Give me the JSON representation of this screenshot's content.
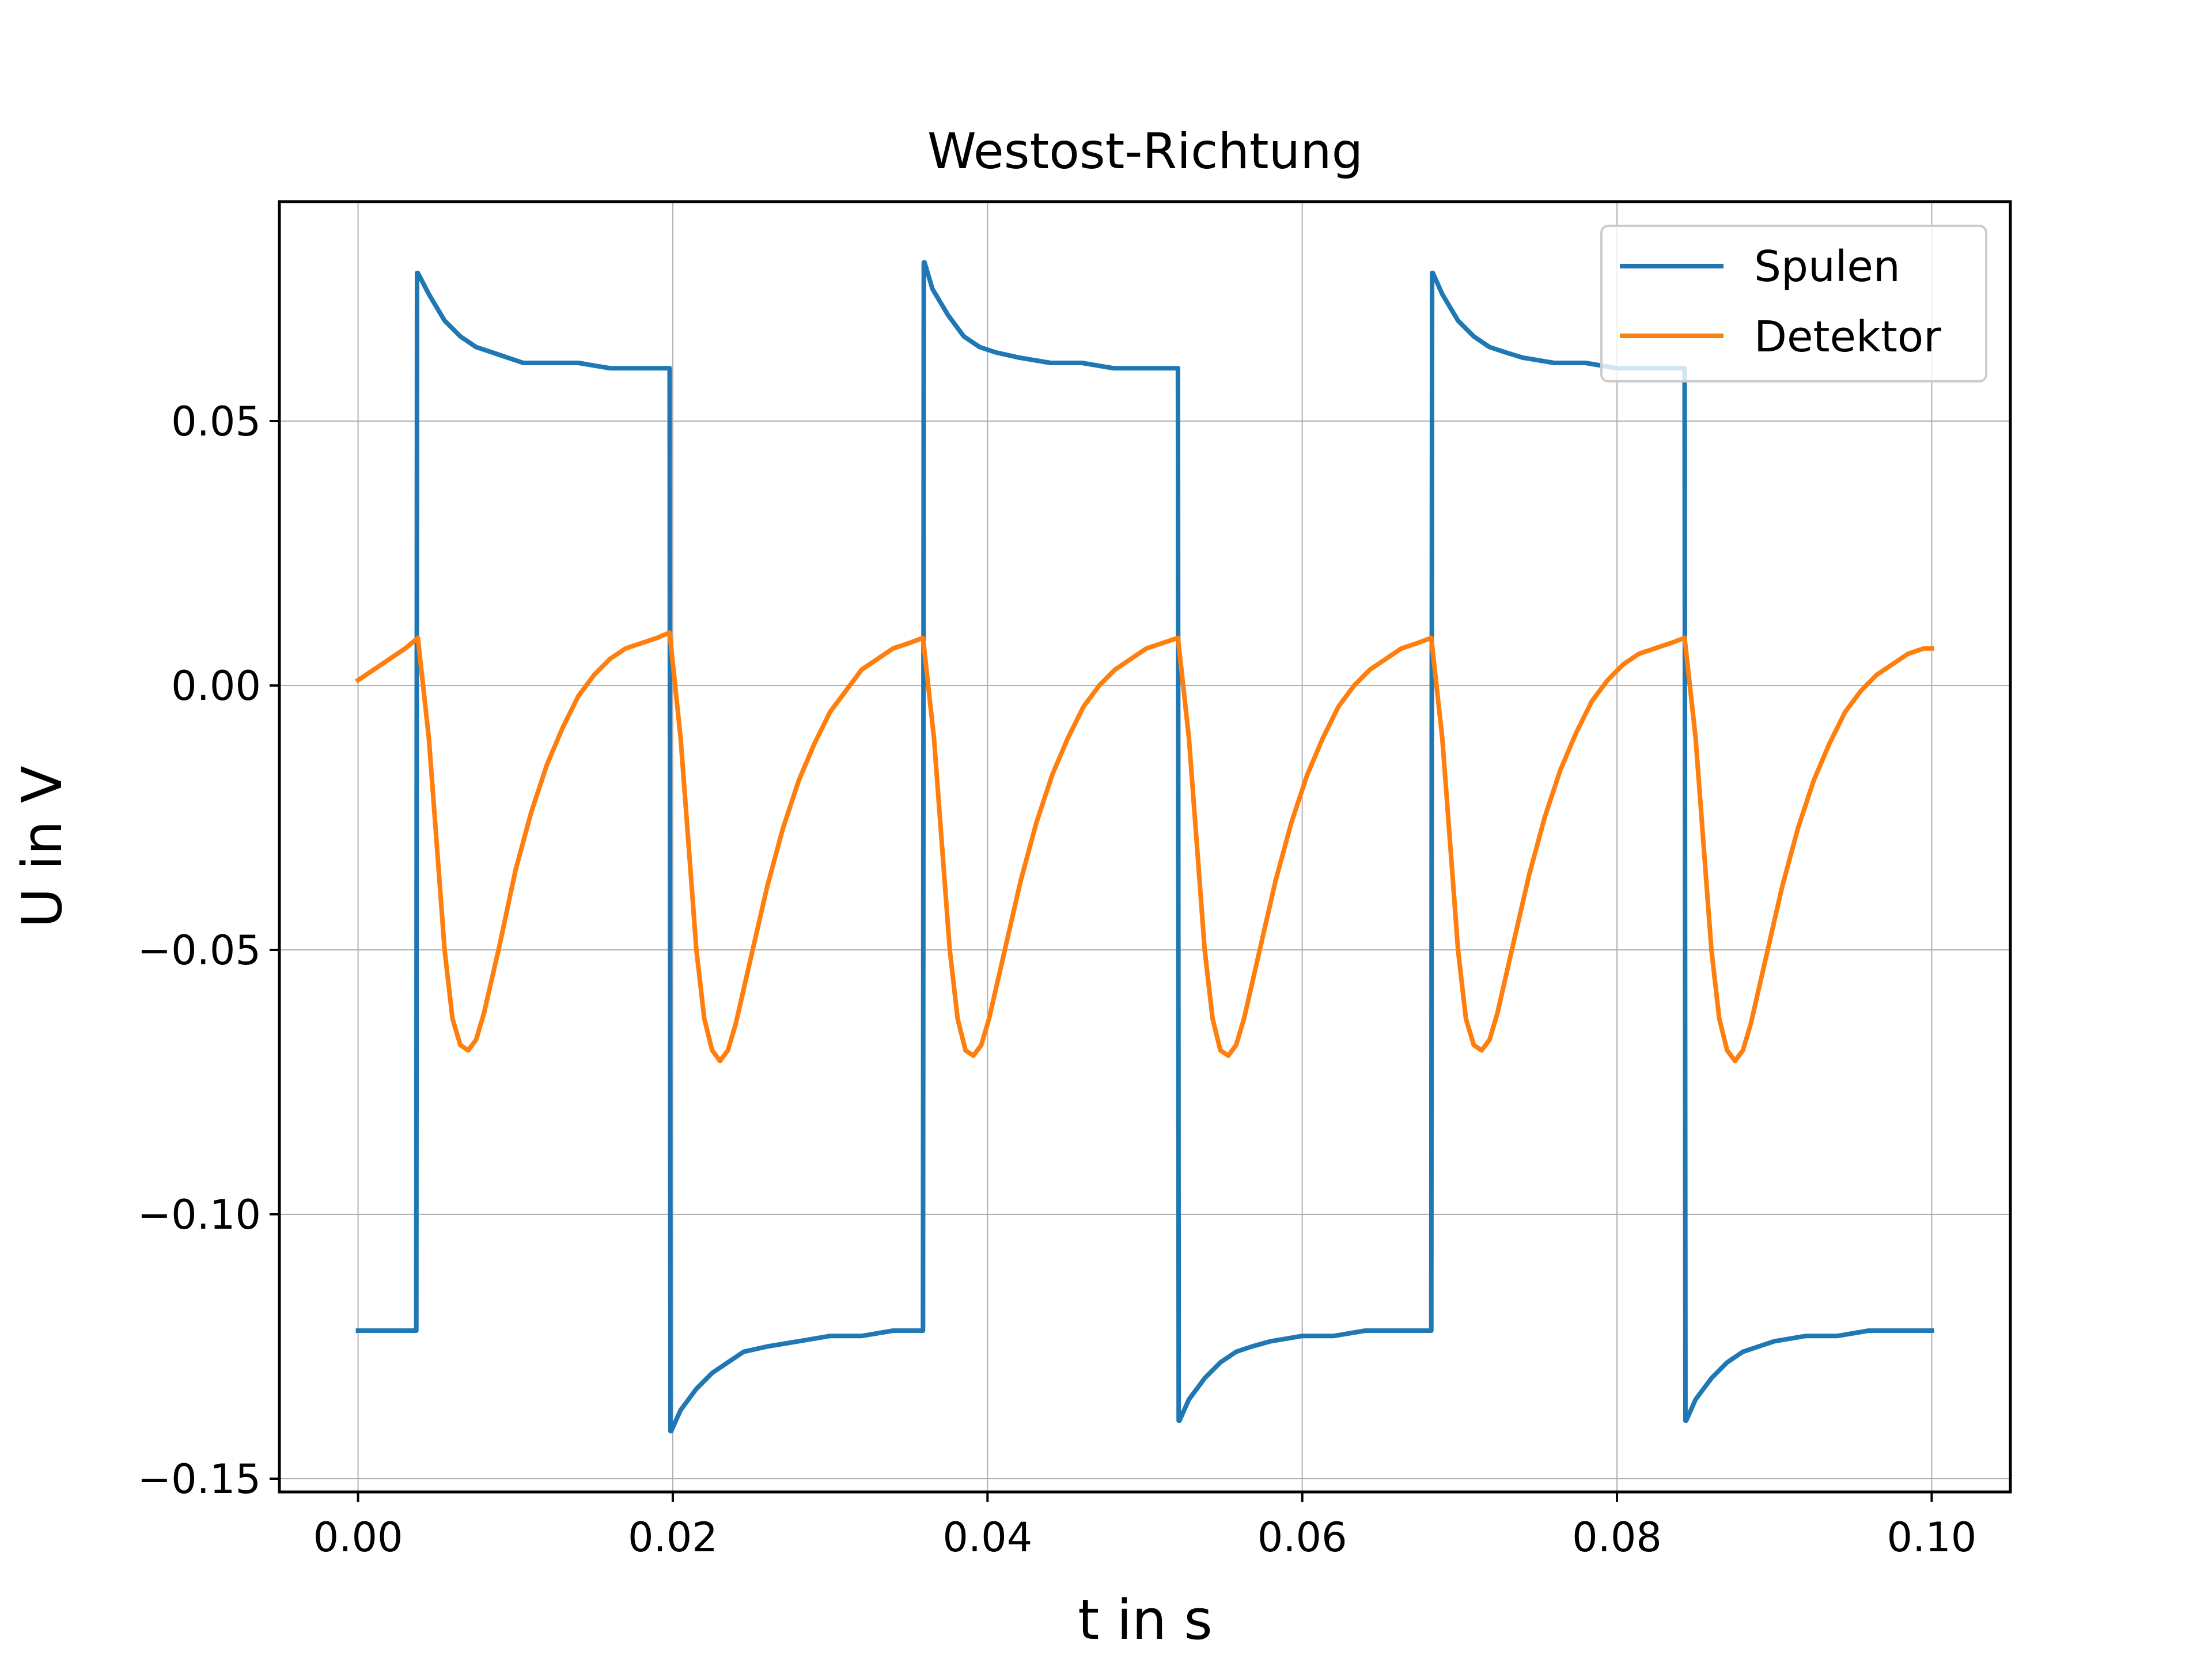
{
  "chart_data": {
    "type": "line",
    "title": "Westost-Richtung",
    "xlabel": "t in s",
    "ylabel": "U in V",
    "xlim": [
      -0.005,
      0.105
    ],
    "ylim": [
      -0.1525,
      0.0915
    ],
    "grid": true,
    "legend_position": "top-right",
    "x_ticks": [
      0.0,
      0.02,
      0.04,
      0.06,
      0.08,
      0.1
    ],
    "x_tick_labels": [
      "0.00",
      "0.02",
      "0.04",
      "0.06",
      "0.08",
      "0.10"
    ],
    "y_ticks": [
      0.05,
      0.0,
      -0.05,
      -0.1,
      -0.15
    ],
    "y_tick_labels": [
      "0.05",
      "0.00",
      "−0.05",
      "−0.10",
      "−0.15"
    ],
    "series": [
      {
        "name": "Spulen",
        "color": "#1f77b4",
        "x": [
          0.0,
          0.0037,
          0.00375,
          0.0038,
          0.0045,
          0.0055,
          0.0065,
          0.0075,
          0.0085,
          0.0095,
          0.0105,
          0.012,
          0.014,
          0.016,
          0.018,
          0.0198,
          0.01985,
          0.0199,
          0.0205,
          0.0215,
          0.0225,
          0.0235,
          0.0245,
          0.026,
          0.028,
          0.03,
          0.032,
          0.034,
          0.0359,
          0.03595,
          0.036,
          0.0365,
          0.0375,
          0.0385,
          0.0395,
          0.0405,
          0.042,
          0.044,
          0.046,
          0.048,
          0.05,
          0.0521,
          0.05215,
          0.0522,
          0.0528,
          0.0538,
          0.0548,
          0.0558,
          0.0568,
          0.058,
          0.06,
          0.062,
          0.064,
          0.066,
          0.0682,
          0.06825,
          0.0683,
          0.0689,
          0.0699,
          0.0709,
          0.0719,
          0.0729,
          0.074,
          0.076,
          0.078,
          0.08,
          0.082,
          0.0843,
          0.08435,
          0.0844,
          0.085,
          0.086,
          0.087,
          0.088,
          0.089,
          0.09,
          0.092,
          0.094,
          0.096,
          0.098,
          0.1
        ],
        "y": [
          -0.122,
          -0.122,
          0.078,
          0.078,
          0.074,
          0.069,
          0.066,
          0.064,
          0.063,
          0.062,
          0.061,
          0.061,
          0.061,
          0.06,
          0.06,
          0.06,
          -0.141,
          -0.141,
          -0.137,
          -0.133,
          -0.13,
          -0.128,
          -0.126,
          -0.125,
          -0.124,
          -0.123,
          -0.123,
          -0.122,
          -0.122,
          0.08,
          0.08,
          0.075,
          0.07,
          0.066,
          0.064,
          0.063,
          0.062,
          0.061,
          0.061,
          0.06,
          0.06,
          0.06,
          -0.139,
          -0.139,
          -0.135,
          -0.131,
          -0.128,
          -0.126,
          -0.125,
          -0.124,
          -0.123,
          -0.123,
          -0.122,
          -0.122,
          -0.122,
          0.078,
          0.078,
          0.074,
          0.069,
          0.066,
          0.064,
          0.063,
          0.062,
          0.061,
          0.061,
          0.06,
          0.06,
          0.06,
          -0.139,
          -0.139,
          -0.135,
          -0.131,
          -0.128,
          -0.126,
          -0.125,
          -0.124,
          -0.123,
          -0.123,
          -0.122,
          -0.122,
          -0.122
        ]
      },
      {
        "name": "Detektor",
        "color": "#ff7f0e",
        "x": [
          0.0,
          0.001,
          0.002,
          0.003,
          0.0038,
          0.0045,
          0.005,
          0.0055,
          0.006,
          0.0065,
          0.007,
          0.0075,
          0.008,
          0.009,
          0.01,
          0.011,
          0.012,
          0.013,
          0.014,
          0.015,
          0.016,
          0.017,
          0.018,
          0.019,
          0.0198,
          0.0205,
          0.021,
          0.0215,
          0.022,
          0.0225,
          0.023,
          0.0235,
          0.024,
          0.025,
          0.026,
          0.027,
          0.028,
          0.029,
          0.03,
          0.031,
          0.032,
          0.033,
          0.034,
          0.035,
          0.0359,
          0.0366,
          0.0371,
          0.0376,
          0.0381,
          0.0386,
          0.0391,
          0.0396,
          0.0401,
          0.0411,
          0.0421,
          0.0431,
          0.0441,
          0.0451,
          0.0461,
          0.0471,
          0.0481,
          0.0491,
          0.0501,
          0.0511,
          0.0521,
          0.0528,
          0.0533,
          0.0538,
          0.0543,
          0.0548,
          0.0553,
          0.0558,
          0.0563,
          0.0573,
          0.0583,
          0.0593,
          0.0603,
          0.0613,
          0.0623,
          0.0633,
          0.0643,
          0.0653,
          0.0663,
          0.0673,
          0.0682,
          0.0689,
          0.0694,
          0.0699,
          0.0704,
          0.0709,
          0.0714,
          0.0719,
          0.0724,
          0.0734,
          0.0744,
          0.0754,
          0.0764,
          0.0774,
          0.0784,
          0.0794,
          0.0804,
          0.0814,
          0.0824,
          0.0834,
          0.0843,
          0.085,
          0.0855,
          0.086,
          0.0865,
          0.087,
          0.0875,
          0.088,
          0.0885,
          0.0895,
          0.0905,
          0.0915,
          0.0925,
          0.0935,
          0.0945,
          0.0955,
          0.0965,
          0.0975,
          0.0985,
          0.0995,
          0.1
        ],
        "y": [
          0.001,
          0.003,
          0.005,
          0.007,
          0.009,
          -0.01,
          -0.03,
          -0.05,
          -0.063,
          -0.068,
          -0.069,
          -0.067,
          -0.062,
          -0.049,
          -0.035,
          -0.024,
          -0.015,
          -0.008,
          -0.002,
          0.002,
          0.005,
          0.007,
          0.008,
          0.009,
          0.01,
          -0.01,
          -0.03,
          -0.05,
          -0.063,
          -0.069,
          -0.071,
          -0.069,
          -0.064,
          -0.051,
          -0.038,
          -0.027,
          -0.018,
          -0.011,
          -0.005,
          -0.001,
          0.003,
          0.005,
          0.007,
          0.008,
          0.009,
          -0.01,
          -0.03,
          -0.05,
          -0.063,
          -0.069,
          -0.07,
          -0.068,
          -0.063,
          -0.05,
          -0.037,
          -0.026,
          -0.017,
          -0.01,
          -0.004,
          0.0,
          0.003,
          0.005,
          0.007,
          0.008,
          0.009,
          -0.01,
          -0.03,
          -0.05,
          -0.063,
          -0.069,
          -0.07,
          -0.068,
          -0.063,
          -0.05,
          -0.037,
          -0.026,
          -0.017,
          -0.01,
          -0.004,
          0.0,
          0.003,
          0.005,
          0.007,
          0.008,
          0.009,
          -0.01,
          -0.03,
          -0.05,
          -0.063,
          -0.068,
          -0.069,
          -0.067,
          -0.062,
          -0.049,
          -0.036,
          -0.025,
          -0.016,
          -0.009,
          -0.003,
          0.001,
          0.004,
          0.006,
          0.007,
          0.008,
          0.009,
          -0.01,
          -0.03,
          -0.05,
          -0.063,
          -0.069,
          -0.071,
          -0.069,
          -0.064,
          -0.051,
          -0.038,
          -0.027,
          -0.018,
          -0.011,
          -0.005,
          -0.001,
          0.002,
          0.004,
          0.006,
          0.007,
          0.007
        ]
      }
    ]
  }
}
